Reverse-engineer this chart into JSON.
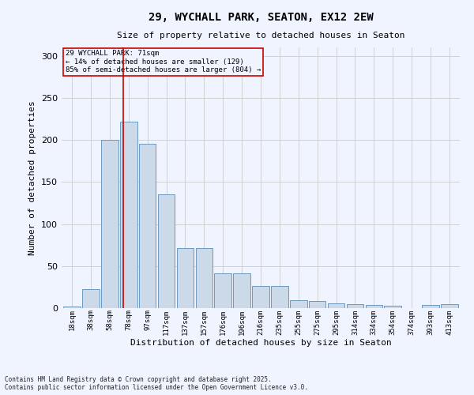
{
  "title_line1": "29, WYCHALL PARK, SEATON, EX12 2EW",
  "title_line2": "Size of property relative to detached houses in Seaton",
  "xlabel": "Distribution of detached houses by size in Seaton",
  "ylabel": "Number of detached properties",
  "footer": "Contains HM Land Registry data © Crown copyright and database right 2025.\nContains public sector information licensed under the Open Government Licence v3.0.",
  "annotation_title": "29 WYCHALL PARK: 71sqm",
  "annotation_line2": "← 14% of detached houses are smaller (129)",
  "annotation_line3": "85% of semi-detached houses are larger (804) →",
  "bar_color": "#ccd9e8",
  "bar_edge_color": "#5b8db8",
  "vline_color": "#cc0000",
  "annotation_box_color": "#cc0000",
  "background_color": "#f0f4ff",
  "grid_color": "#cccccc",
  "categories": [
    "18sqm",
    "38sqm",
    "58sqm",
    "78sqm",
    "97sqm",
    "117sqm",
    "137sqm",
    "157sqm",
    "176sqm",
    "196sqm",
    "216sqm",
    "235sqm",
    "255sqm",
    "275sqm",
    "295sqm",
    "314sqm",
    "334sqm",
    "354sqm",
    "374sqm",
    "393sqm",
    "413sqm"
  ],
  "bar_values": [
    2,
    23,
    200,
    222,
    195,
    135,
    71,
    71,
    41,
    41,
    26,
    26,
    9,
    8,
    6,
    5,
    4,
    3,
    0,
    4,
    5
  ],
  "ylim": [
    0,
    310
  ],
  "yticks": [
    0,
    50,
    100,
    150,
    200,
    250,
    300
  ],
  "vline_x": 2.72
}
